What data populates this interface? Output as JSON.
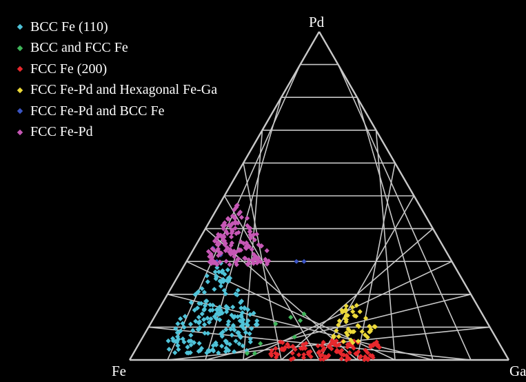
{
  "chart_data": {
    "type": "scatter",
    "subtype": "ternary",
    "grid": true,
    "grid_divisions": 10,
    "grid_color": "#c8c8c8",
    "background": "#000000",
    "legend_position": "top-left",
    "vertex_labels": {
      "top": "Pd",
      "bottom_left": "Fe",
      "bottom_right": "Ga"
    },
    "point_units": "fraction (Fe, Ga, Pd)",
    "series": [
      {
        "name": "BCC Fe (110)",
        "color": "#4fc3d9",
        "marker": "diamond",
        "clusters": [
          {
            "fe": [
              0.6,
              0.89
            ],
            "ga": [
              0.07,
              0.3
            ],
            "pd": [
              0.02,
              0.3
            ],
            "count": 190
          }
        ]
      },
      {
        "name": "BCC and FCC Fe",
        "color": "#3fb65a",
        "marker": "diamond",
        "points": [
          {
            "fe": 0.47,
            "ga": 0.39,
            "pd": 0.14
          },
          {
            "fe": 0.51,
            "ga": 0.36,
            "pd": 0.13
          },
          {
            "fe": 0.49,
            "ga": 0.39,
            "pd": 0.12
          },
          {
            "fe": 0.56,
            "ga": 0.33,
            "pd": 0.11
          },
          {
            "fe": 0.63,
            "ga": 0.32,
            "pd": 0.05
          },
          {
            "fe": 0.66,
            "ga": 0.32,
            "pd": 0.02
          },
          {
            "fe": 0.68,
            "ga": 0.3,
            "pd": 0.02
          },
          {
            "fe": 0.53,
            "ga": 0.4,
            "pd": 0.07
          }
        ]
      },
      {
        "name": "FCC Fe (200)",
        "color": "#e8282d",
        "marker": "diamond",
        "clusters": [
          {
            "fe": [
              0.32,
              0.62
            ],
            "ga": [
              0.36,
              0.65
            ],
            "pd": [
              0.0,
              0.06
            ],
            "count": 110
          }
        ]
      },
      {
        "name": "FCC Fe-Pd and Hexagonal Fe-Ga",
        "color": "#ecd938",
        "marker": "diamond",
        "clusters": [
          {
            "fe": [
              0.3,
              0.43
            ],
            "ga": [
              0.48,
              0.6
            ],
            "pd": [
              0.05,
              0.18
            ],
            "count": 45
          }
        ]
      },
      {
        "name": "FCC Fe-Pd and BCC Fe",
        "color": "#3b55c4",
        "marker": "diamond",
        "points": [
          {
            "fe": 0.62,
            "ga": 0.08,
            "pd": 0.3
          },
          {
            "fe": 0.6,
            "ga": 0.08,
            "pd": 0.32
          },
          {
            "fe": 0.57,
            "ga": 0.1,
            "pd": 0.33
          },
          {
            "fe": 0.61,
            "ga": 0.05,
            "pd": 0.34
          },
          {
            "fe": 0.41,
            "ga": 0.29,
            "pd": 0.3
          },
          {
            "fe": 0.39,
            "ga": 0.31,
            "pd": 0.3
          }
        ]
      },
      {
        "name": "FCC Fe-Pd",
        "color": "#c657b5",
        "marker": "diamond",
        "clusters": [
          {
            "fe": [
              0.47,
              0.64
            ],
            "ga": [
              0.04,
              0.24
            ],
            "pd": [
              0.29,
              0.52
            ],
            "count": 115
          },
          {
            "fe": [
              0.53,
              0.65
            ],
            "ga": [
              0.03,
              0.12
            ],
            "pd": [
              0.29,
              0.4
            ],
            "count": 25
          }
        ]
      }
    ]
  }
}
